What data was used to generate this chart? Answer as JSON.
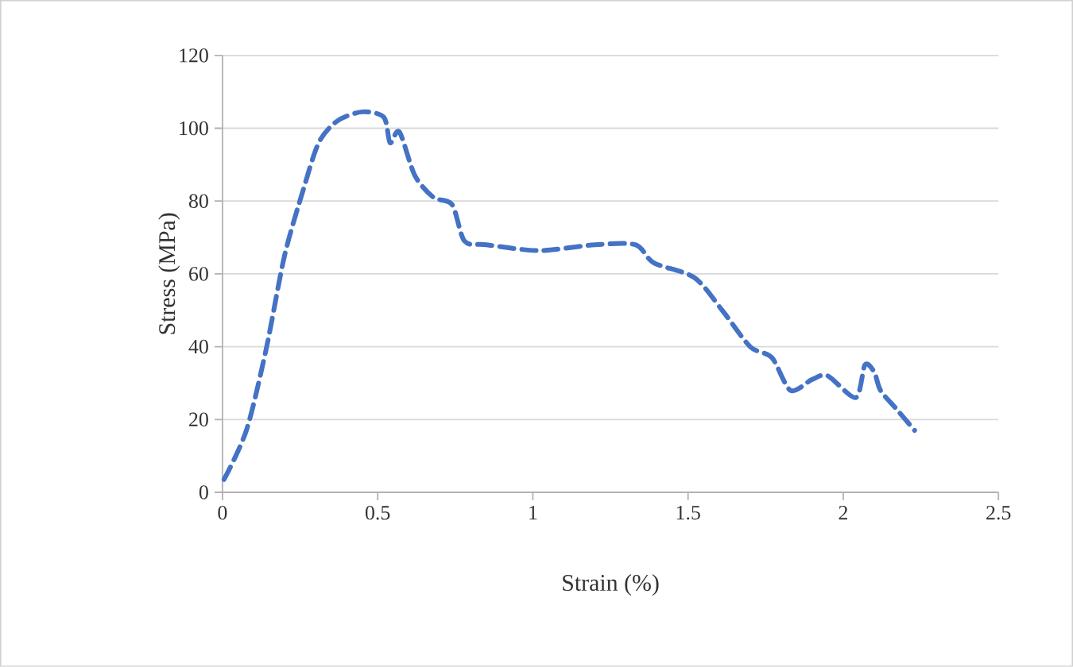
{
  "chart_data": {
    "type": "line",
    "xlabel": "Strain (%)",
    "ylabel": "Stress (MPa)",
    "x": [
      0.005,
      0.077,
      0.14,
      0.2,
      0.26,
      0.31,
      0.37,
      0.45,
      0.52,
      0.54,
      0.57,
      0.62,
      0.68,
      0.74,
      0.78,
      0.85,
      1.02,
      1.2,
      1.33,
      1.39,
      1.52,
      1.61,
      1.7,
      1.77,
      1.83,
      1.9,
      1.95,
      2.04,
      2.07,
      2.1,
      2.12,
      2.17,
      2.23
    ],
    "series": [
      {
        "color": "#4472c4",
        "line_style": "dashed",
        "values": [
          3.5,
          17,
          39,
          65,
          83,
          96,
          102,
          104.5,
          103,
          96,
          99,
          87,
          81,
          79,
          69,
          68,
          66.4,
          68,
          68,
          63,
          59,
          50,
          40,
          37,
          28,
          31,
          32,
          26,
          35,
          33,
          28,
          23,
          17
        ]
      }
    ],
    "xlim": [
      0,
      2.5
    ],
    "xticks": [
      0,
      0.5,
      1,
      1.5,
      2,
      2.5
    ],
    "ylim": [
      0,
      120
    ],
    "yticks": [
      0,
      20,
      40,
      60,
      80,
      100,
      120
    ],
    "grid": "y"
  }
}
